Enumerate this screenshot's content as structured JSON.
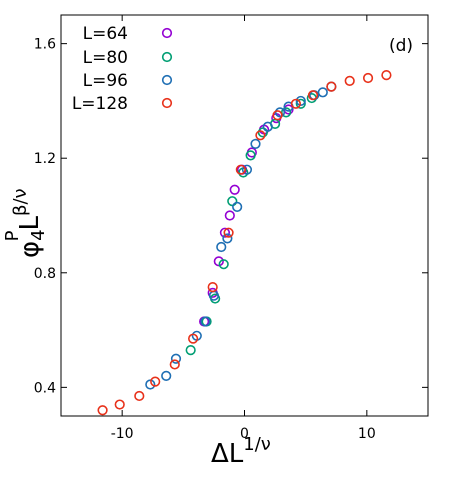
{
  "chart_data": {
    "type": "scatter",
    "title": "",
    "panel_label": "(d)",
    "xlabel": {
      "main": "ΔL",
      "sup": "1/ν"
    },
    "ylabel": {
      "main": "φ",
      "sub": "4",
      "sup_p": "P",
      "mid": "L",
      "sup": "β/ν"
    },
    "xlim": [
      -15,
      15
    ],
    "ylim": [
      0.3,
      1.7
    ],
    "xticks": [
      -10,
      0,
      10
    ],
    "yticks": [
      0.4,
      0.8,
      1.2,
      1.6
    ],
    "xtick_labels": [
      "-10",
      "0",
      "10"
    ],
    "ytick_labels": [
      "0.4",
      "0.8",
      "1.2",
      "1.6"
    ],
    "grid": false,
    "legend": "top-left",
    "series": [
      {
        "name": "L=64",
        "color": "#9400d3",
        "x": [
          -3.3,
          -2.6,
          -2.1,
          -1.6,
          -1.2,
          -0.8,
          -0.2,
          0.6,
          1.6,
          2.6,
          3.6
        ],
        "y": [
          0.63,
          0.73,
          0.84,
          0.94,
          1.0,
          1.09,
          1.16,
          1.22,
          1.3,
          1.34,
          1.37
        ]
      },
      {
        "name": "L=80",
        "color": "#009e73",
        "x": [
          -4.4,
          -3.1,
          -2.4,
          -1.7,
          -1.0,
          -0.1,
          0.5,
          1.5,
          2.5,
          3.4,
          4.6,
          5.5
        ],
        "y": [
          0.53,
          0.63,
          0.71,
          0.83,
          1.05,
          1.15,
          1.21,
          1.29,
          1.32,
          1.36,
          1.39,
          1.41
        ]
      },
      {
        "name": "L=96",
        "color": "#1f6fb4",
        "x": [
          -7.7,
          -6.4,
          -5.6,
          -3.9,
          -3.2,
          -2.5,
          -1.9,
          -1.4,
          -0.6,
          0.2,
          0.9,
          1.9,
          2.9,
          3.6,
          4.6,
          5.7,
          6.4,
          7.1
        ],
        "y": [
          0.41,
          0.44,
          0.5,
          0.58,
          0.63,
          0.72,
          0.89,
          0.92,
          1.03,
          1.16,
          1.25,
          1.31,
          1.36,
          1.38,
          1.4,
          1.42,
          1.43,
          1.45
        ]
      },
      {
        "name": "L=128",
        "color": "#e8311a",
        "x": [
          -11.6,
          -10.2,
          -8.6,
          -7.3,
          -5.7,
          -4.2,
          -2.6,
          -1.3,
          -0.3,
          1.3,
          2.7,
          4.2,
          5.6,
          7.1,
          8.6,
          10.1,
          11.6
        ],
        "y": [
          0.32,
          0.34,
          0.37,
          0.42,
          0.48,
          0.57,
          0.75,
          0.94,
          1.16,
          1.28,
          1.35,
          1.39,
          1.42,
          1.45,
          1.47,
          1.48,
          1.49
        ]
      }
    ]
  }
}
